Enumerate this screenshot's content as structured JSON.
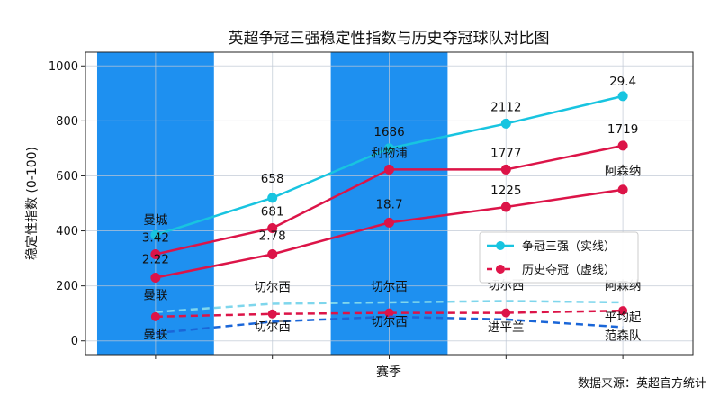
{
  "chart_data": {
    "type": "line",
    "title": "英超争冠三强稳定性指数与历史夺冠球队对比图",
    "xlabel": "赛季",
    "ylabel": "稳定性指数 (0-100)",
    "ylim": [
      -50,
      1050
    ],
    "yticks": [
      0,
      200,
      400,
      600,
      800,
      1000
    ],
    "x": [
      0,
      1,
      2,
      3,
      4
    ],
    "x_tick_labels": [
      "",
      "",
      "",
      "",
      ""
    ],
    "grid": true,
    "shaded_bands": [
      {
        "from": -0.5,
        "to": 0.5,
        "color": "#1e90f0"
      },
      {
        "from": 1.5,
        "to": 2.5,
        "color": "#1e90f0"
      }
    ],
    "legend": {
      "position": "right",
      "entries": [
        {
          "label": "争冠三强（实线）",
          "color": "#18c4e0",
          "style": "solid"
        },
        {
          "label": "历史夺冠（虚线）",
          "color": "#e0154a",
          "style": "dashed"
        }
      ]
    },
    "series": [
      {
        "values": [
          385,
          520,
          700,
          790,
          890
        ],
        "color": "#18c4e0",
        "style": "solid",
        "labels": [
          "曼城",
          "658",
          "1686",
          "2112",
          "29.4"
        ]
      },
      {
        "values": [
          315,
          410,
          623,
          623,
          710
        ],
        "color": "#dc1448",
        "style": "solid",
        "labels": [
          "3.42",
          "681",
          "利物浦",
          "1777",
          "1719"
        ]
      },
      {
        "values": [
          230,
          315,
          430,
          487,
          550
        ],
        "color": "#dc1448",
        "style": "solid",
        "labels": [
          "2.22",
          "2.78",
          "18.7",
          "1225",
          "阿森纳"
        ]
      },
      {
        "values": [
          105,
          135,
          140,
          145,
          140
        ],
        "color": "#7fd6ec",
        "style": "dashed",
        "labels": [
          "曼联",
          "切尔西",
          "切尔西",
          "切尔西",
          "阿森纳"
        ]
      },
      {
        "values": [
          88,
          98,
          102,
          102,
          110
        ],
        "color": "#dc1448",
        "style": "dashed",
        "markers": true,
        "labels": [
          "",
          "",
          "",
          "",
          "平均起"
        ]
      },
      {
        "values": [
          28,
          70,
          88,
          78,
          50
        ],
        "color": "#1a66d8",
        "style": "dashed",
        "labels": [
          "曼联",
          "切尔西",
          "切尔西",
          "进平兰",
          "范森队"
        ]
      }
    ],
    "source_note": "数据来源：英超官方统计"
  }
}
